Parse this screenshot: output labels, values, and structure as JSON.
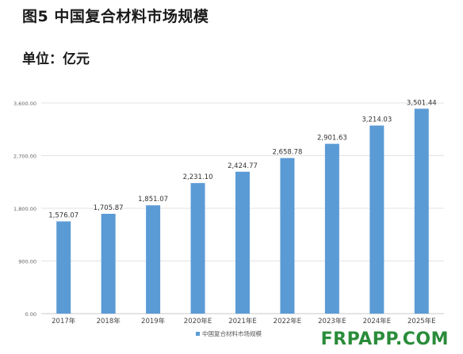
{
  "header": {
    "title": "图5 中国复合材料市场规模",
    "unit": "单位：亿元"
  },
  "chart_data": {
    "type": "bar",
    "categories": [
      "2017年",
      "2018年",
      "2019年",
      "2020年E",
      "2021年E",
      "2022年E",
      "2023年E",
      "2024年E",
      "2025年E"
    ],
    "series": [
      {
        "name": "中国复合材料市场规模",
        "values": [
          1576.07,
          1705.87,
          1851.07,
          2231.1,
          2424.77,
          2658.78,
          2901.63,
          3214.03,
          3501.44
        ]
      }
    ],
    "value_labels": [
      "1,576.07",
      "1,705.87",
      "1,851.07",
      "2,231.10",
      "2,424.77",
      "2,658.78",
      "2,901.63",
      "3,214.03",
      "3,501.44"
    ],
    "y_ticks": [
      0,
      900,
      1800,
      2700,
      3600
    ],
    "y_tick_labels": [
      "0.00",
      "900.00",
      "1,800.00",
      "2,700.00",
      "3,600.00"
    ],
    "ylim": [
      0,
      3600
    ],
    "grid": true,
    "legend": "bottom",
    "bar_color": "#5b9bd5"
  },
  "watermark": "FRPAPP.COM"
}
